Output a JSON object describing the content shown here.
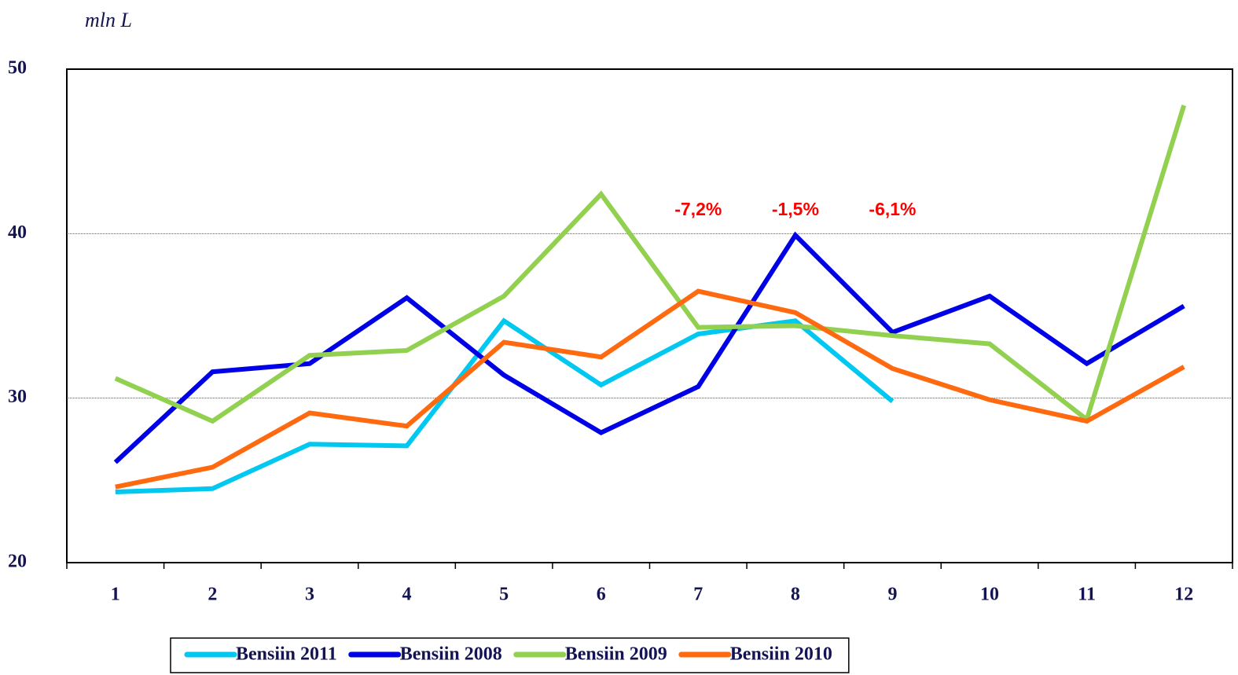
{
  "chart_data": {
    "type": "line",
    "y_label": "mln L",
    "categories": [
      "1",
      "2",
      "3",
      "4",
      "5",
      "6",
      "7",
      "8",
      "9",
      "10",
      "11",
      "12"
    ],
    "ylim": [
      20,
      50
    ],
    "yticks": [
      20,
      30,
      40,
      50
    ],
    "grid": true,
    "series": [
      {
        "name": "Bensiin 2011",
        "color": "#00c8f0",
        "values": [
          24.3,
          24.5,
          27.2,
          27.1,
          34.7,
          30.8,
          33.9,
          34.7,
          29.8,
          null,
          null,
          null
        ]
      },
      {
        "name": "Bensiin 2008",
        "color": "#0000e6",
        "values": [
          26.1,
          31.6,
          32.1,
          36.1,
          31.4,
          27.9,
          30.7,
          39.9,
          34.0,
          36.2,
          32.1,
          35.6
        ]
      },
      {
        "name": "Bensiin 2009",
        "color": "#92d050",
        "values": [
          31.2,
          28.6,
          32.6,
          32.9,
          36.2,
          42.4,
          34.3,
          34.4,
          33.8,
          33.3,
          28.7,
          47.8
        ]
      },
      {
        "name": "Bensiin 2010",
        "color": "#ff6a10",
        "values": [
          24.6,
          25.8,
          29.1,
          28.3,
          33.4,
          32.5,
          36.5,
          35.2,
          31.8,
          29.9,
          28.6,
          31.9
        ]
      }
    ],
    "annotations": [
      {
        "text": "-7,2%",
        "category": "7"
      },
      {
        "text": "-1,5%",
        "category": "8"
      },
      {
        "text": "-6,1%",
        "category": "9"
      }
    ],
    "legend": "bottom"
  }
}
